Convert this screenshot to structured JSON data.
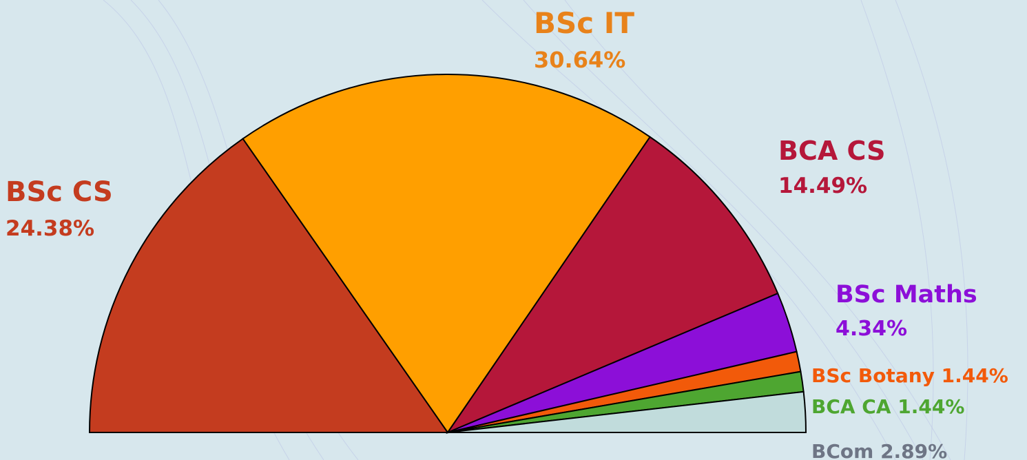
{
  "chart_data": {
    "type": "semi-pie",
    "categories": [
      "BSc CS",
      "BSc IT",
      "BCA CS",
      "BSc Maths",
      "BSc Botany",
      "BCA CA",
      "BCom"
    ],
    "values": [
      24.38,
      30.64,
      14.49,
      4.34,
      1.44,
      1.44,
      2.89
    ],
    "value_labels": [
      "24.38%",
      "30.64%",
      "14.49%",
      "4.34%",
      "1.44%",
      "1.44%",
      "2.89%"
    ],
    "colors": [
      "#c43c1f",
      "#ff9f00",
      "#b5173a",
      "#8c0fd8",
      "#f25a0a",
      "#4ea631",
      "#c1dcdc"
    ],
    "label_colors": [
      "#c43c1f",
      "#e8821a",
      "#b5173a",
      "#8c0fd8",
      "#f25a0a",
      "#4ea631",
      "#6e7585"
    ]
  }
}
